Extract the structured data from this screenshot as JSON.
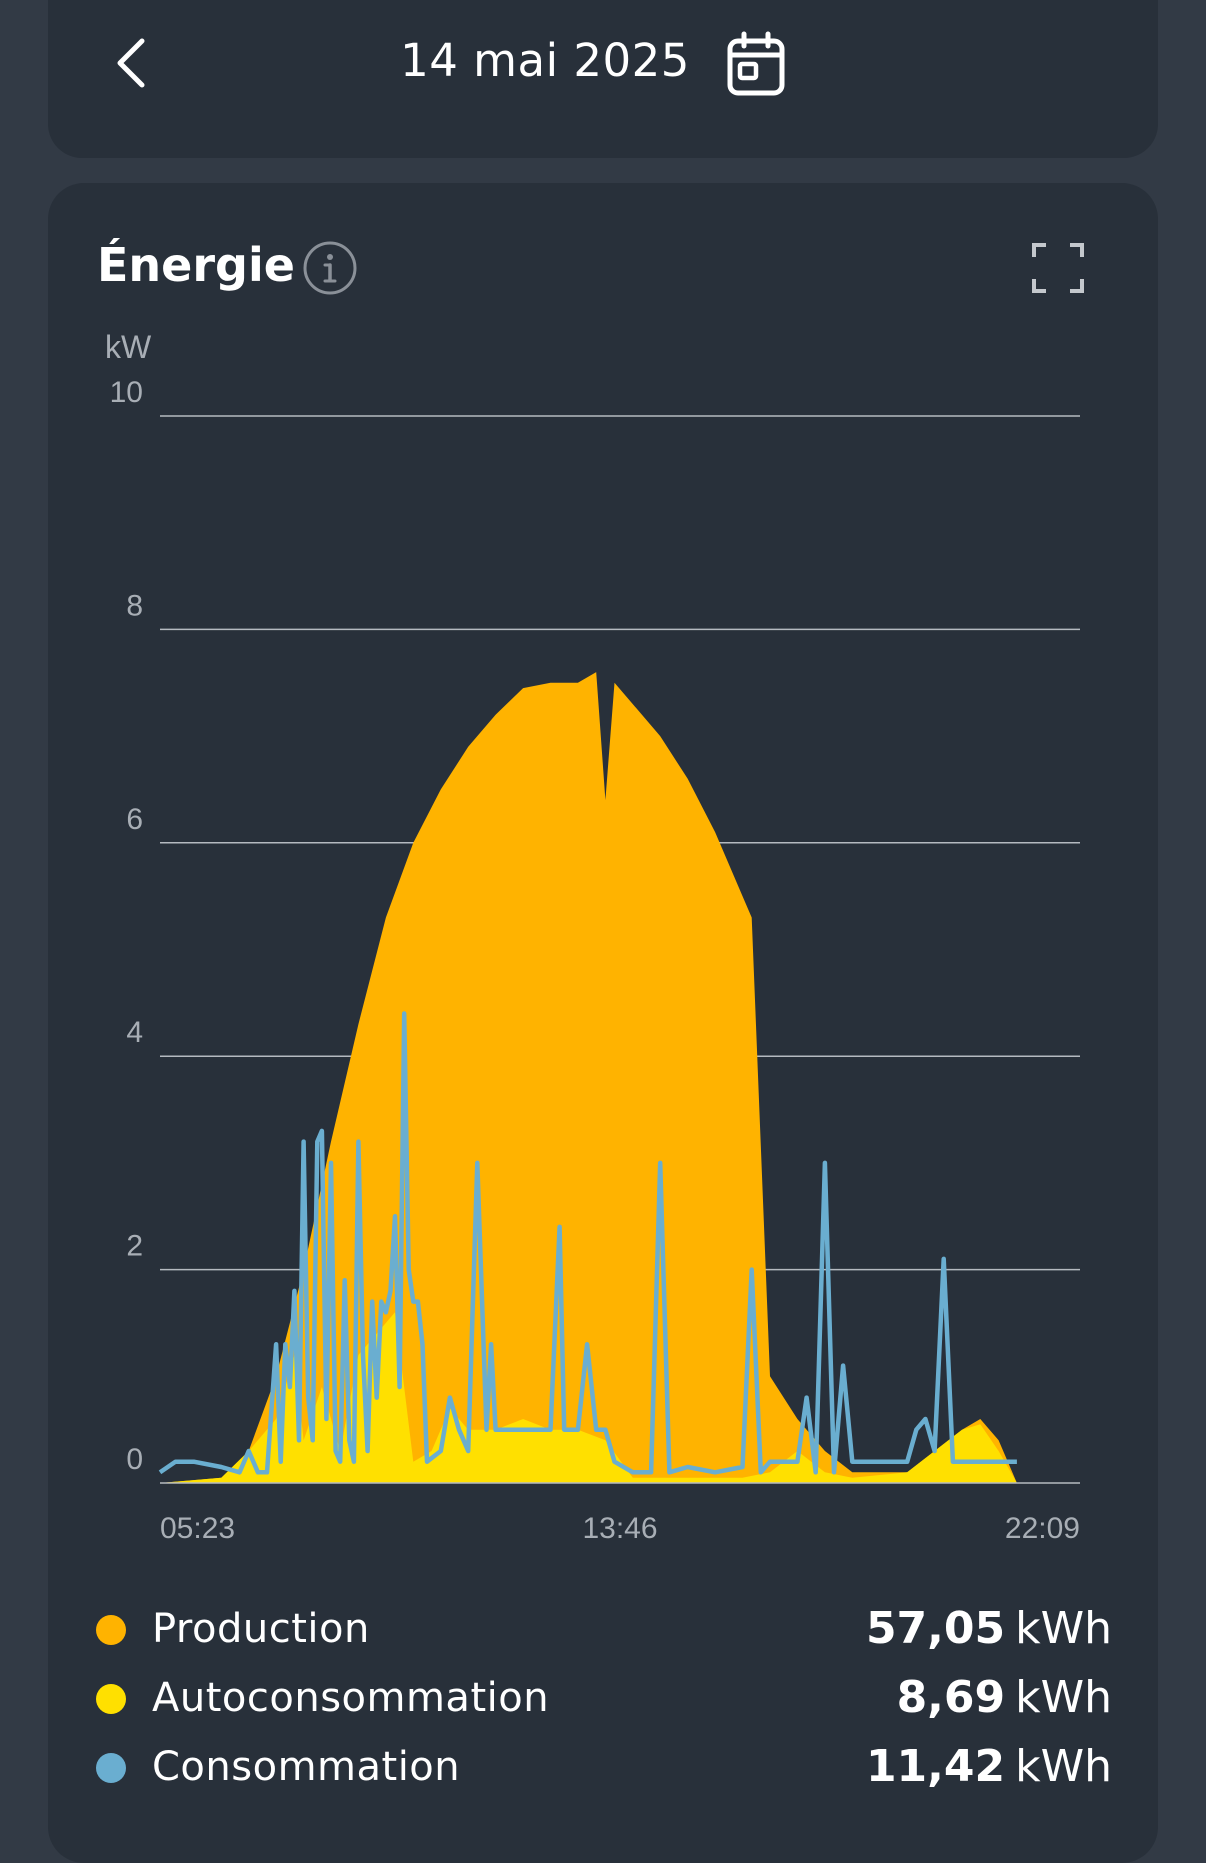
{
  "header": {
    "date": "14 mai 2025",
    "back_icon": "chevron-left-icon",
    "calendar_icon": "calendar-icon"
  },
  "card": {
    "title": "Énergie",
    "info_icon": "info-icon",
    "expand_icon": "fullscreen-icon"
  },
  "colors": {
    "production": "#ffb300",
    "autoconsommation": "#ffe000",
    "consommation": "#6aaed0",
    "background": "#323a45",
    "card": "#28303a"
  },
  "chart_data": {
    "type": "area",
    "ylabel": "kW",
    "ylim": [
      0,
      10
    ],
    "yticks": [
      "0",
      "2",
      "4",
      "6",
      "8",
      "10"
    ],
    "xlim": [
      "05:23",
      "22:09"
    ],
    "xticks": [
      "05:23",
      "13:46",
      "22:09"
    ],
    "grid": true,
    "legend": "bottom",
    "series": [
      {
        "name": "Production",
        "style": "area",
        "points": [
          [
            "05:23",
            0
          ],
          [
            "06:30",
            0.05
          ],
          [
            "07:00",
            0.3
          ],
          [
            "07:30",
            1.0
          ],
          [
            "08:00",
            2.0
          ],
          [
            "08:30",
            3.2
          ],
          [
            "09:00",
            4.3
          ],
          [
            "09:30",
            5.3
          ],
          [
            "10:00",
            6.0
          ],
          [
            "10:30",
            6.5
          ],
          [
            "11:00",
            6.9
          ],
          [
            "11:30",
            7.2
          ],
          [
            "12:00",
            7.45
          ],
          [
            "12:30",
            7.5
          ],
          [
            "13:00",
            7.5
          ],
          [
            "13:20",
            7.6
          ],
          [
            "13:30",
            6.4
          ],
          [
            "13:40",
            7.5
          ],
          [
            "14:00",
            7.3
          ],
          [
            "14:30",
            7.0
          ],
          [
            "15:00",
            6.6
          ],
          [
            "15:30",
            6.1
          ],
          [
            "16:00",
            5.5
          ],
          [
            "16:10",
            5.3
          ],
          [
            "16:30",
            1.0
          ],
          [
            "17:00",
            0.6
          ],
          [
            "17:30",
            0.3
          ],
          [
            "18:00",
            0.1
          ],
          [
            "19:00",
            0.1
          ],
          [
            "19:30",
            0.3
          ],
          [
            "20:00",
            0.5
          ],
          [
            "20:20",
            0.6
          ],
          [
            "20:40",
            0.4
          ],
          [
            "21:00",
            0.0
          ]
        ]
      },
      {
        "name": "Autoconsommation",
        "style": "area",
        "points": [
          [
            "05:23",
            0
          ],
          [
            "06:30",
            0.05
          ],
          [
            "07:00",
            0.3
          ],
          [
            "07:30",
            0.6
          ],
          [
            "07:50",
            1.2
          ],
          [
            "08:00",
            0.4
          ],
          [
            "08:20",
            0.9
          ],
          [
            "08:40",
            0.3
          ],
          [
            "09:00",
            1.2
          ],
          [
            "09:20",
            1.4
          ],
          [
            "09:40",
            1.6
          ],
          [
            "10:00",
            0.2
          ],
          [
            "10:20",
            0.3
          ],
          [
            "10:40",
            0.7
          ],
          [
            "11:00",
            0.5
          ],
          [
            "11:30",
            0.5
          ],
          [
            "12:00",
            0.6
          ],
          [
            "12:30",
            0.5
          ],
          [
            "13:00",
            0.5
          ],
          [
            "13:30",
            0.4
          ],
          [
            "14:00",
            0.05
          ],
          [
            "15:00",
            0.05
          ],
          [
            "16:00",
            0.05
          ],
          [
            "16:30",
            0.1
          ],
          [
            "17:00",
            0.3
          ],
          [
            "17:30",
            0.1
          ],
          [
            "18:00",
            0.05
          ],
          [
            "19:00",
            0.1
          ],
          [
            "19:30",
            0.3
          ],
          [
            "20:00",
            0.5
          ],
          [
            "20:20",
            0.55
          ],
          [
            "20:40",
            0.3
          ],
          [
            "21:00",
            0.0
          ]
        ]
      },
      {
        "name": "Consommation",
        "style": "line",
        "points": [
          [
            "05:23",
            0.1
          ],
          [
            "05:40",
            0.2
          ],
          [
            "06:00",
            0.2
          ],
          [
            "06:30",
            0.15
          ],
          [
            "06:50",
            0.1
          ],
          [
            "07:00",
            0.3
          ],
          [
            "07:10",
            0.1
          ],
          [
            "07:20",
            0.1
          ],
          [
            "07:30",
            1.3
          ],
          [
            "07:35",
            0.2
          ],
          [
            "07:40",
            1.3
          ],
          [
            "07:45",
            0.9
          ],
          [
            "07:50",
            1.8
          ],
          [
            "07:55",
            0.4
          ],
          [
            "08:00",
            3.2
          ],
          [
            "08:05",
            0.8
          ],
          [
            "08:10",
            0.4
          ],
          [
            "08:15",
            3.2
          ],
          [
            "08:20",
            3.3
          ],
          [
            "08:25",
            0.6
          ],
          [
            "08:30",
            3.0
          ],
          [
            "08:35",
            0.3
          ],
          [
            "08:40",
            0.2
          ],
          [
            "08:45",
            1.9
          ],
          [
            "08:50",
            0.4
          ],
          [
            "08:55",
            0.2
          ],
          [
            "09:00",
            3.2
          ],
          [
            "09:05",
            1.2
          ],
          [
            "09:10",
            0.3
          ],
          [
            "09:15",
            1.7
          ],
          [
            "09:20",
            0.8
          ],
          [
            "09:25",
            1.7
          ],
          [
            "09:30",
            1.6
          ],
          [
            "09:35",
            1.8
          ],
          [
            "09:40",
            2.5
          ],
          [
            "09:45",
            0.9
          ],
          [
            "09:50",
            4.4
          ],
          [
            "09:55",
            2.0
          ],
          [
            "10:00",
            1.7
          ],
          [
            "10:05",
            1.7
          ],
          [
            "10:10",
            1.3
          ],
          [
            "10:15",
            0.2
          ],
          [
            "10:30",
            0.3
          ],
          [
            "10:40",
            0.8
          ],
          [
            "10:50",
            0.5
          ],
          [
            "11:00",
            0.3
          ],
          [
            "11:10",
            3.0
          ],
          [
            "11:20",
            0.5
          ],
          [
            "11:25",
            1.3
          ],
          [
            "11:30",
            0.5
          ],
          [
            "12:00",
            0.5
          ],
          [
            "12:30",
            0.5
          ],
          [
            "12:40",
            2.4
          ],
          [
            "12:45",
            0.5
          ],
          [
            "13:00",
            0.5
          ],
          [
            "13:10",
            1.3
          ],
          [
            "13:20",
            0.5
          ],
          [
            "13:30",
            0.5
          ],
          [
            "13:40",
            0.2
          ],
          [
            "14:00",
            0.1
          ],
          [
            "14:20",
            0.1
          ],
          [
            "14:30",
            3.0
          ],
          [
            "14:40",
            0.1
          ],
          [
            "15:00",
            0.15
          ],
          [
            "15:30",
            0.1
          ],
          [
            "16:00",
            0.15
          ],
          [
            "16:10",
            2.0
          ],
          [
            "16:20",
            0.1
          ],
          [
            "16:30",
            0.2
          ],
          [
            "17:00",
            0.2
          ],
          [
            "17:10",
            0.8
          ],
          [
            "17:20",
            0.1
          ],
          [
            "17:30",
            3.0
          ],
          [
            "17:40",
            0.1
          ],
          [
            "17:50",
            1.1
          ],
          [
            "18:00",
            0.2
          ],
          [
            "18:30",
            0.2
          ],
          [
            "19:00",
            0.2
          ],
          [
            "19:10",
            0.5
          ],
          [
            "19:20",
            0.6
          ],
          [
            "19:30",
            0.3
          ],
          [
            "19:40",
            2.1
          ],
          [
            "19:50",
            0.2
          ],
          [
            "20:00",
            0.2
          ],
          [
            "20:30",
            0.2
          ],
          [
            "21:00",
            0.2
          ]
        ]
      }
    ]
  },
  "legend": [
    {
      "label": "Production",
      "value": "57,05",
      "unit": "kWh"
    },
    {
      "label": "Autoconsommation",
      "value": "8,69",
      "unit": "kWh"
    },
    {
      "label": "Consommation",
      "value": "11,42",
      "unit": "kWh"
    }
  ]
}
